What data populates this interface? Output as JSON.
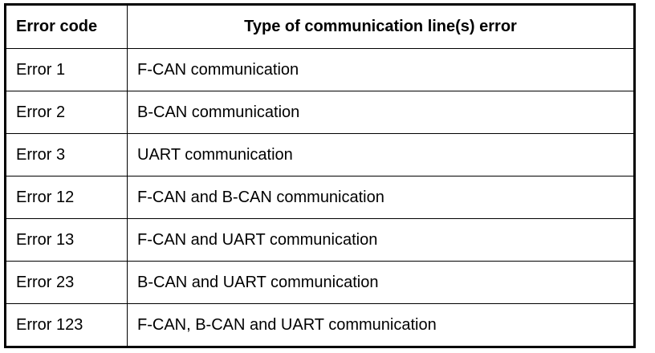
{
  "table": {
    "headers": [
      "Error code",
      "Type of communication line(s) error"
    ],
    "rows": [
      [
        "Error 1",
        "F-CAN communication"
      ],
      [
        "Error 2",
        "B-CAN communication"
      ],
      [
        "Error 3",
        "UART communication"
      ],
      [
        "Error 12",
        "F-CAN and B-CAN communication"
      ],
      [
        "Error 13",
        "F-CAN and UART communication"
      ],
      [
        "Error 23",
        "B-CAN and UART communication"
      ],
      [
        "Error 123",
        "F-CAN, B-CAN and UART communication"
      ]
    ]
  }
}
